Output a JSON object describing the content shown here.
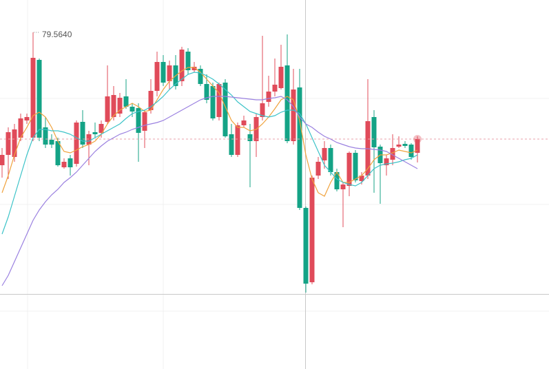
{
  "chart_data": {
    "type": "candlestick",
    "max_label": "79.5640",
    "categories": [
      null,
      null,
      null,
      null,
      null,
      null,
      null,
      null,
      null,
      null,
      null,
      null,
      null,
      null,
      null,
      null,
      null,
      null,
      null,
      null,
      null,
      null,
      null,
      null,
      null,
      null,
      null,
      null,
      null,
      null,
      null,
      null,
      null,
      null,
      null,
      null,
      null,
      null,
      null,
      null,
      null,
      null,
      null,
      null,
      null,
      null,
      null,
      null,
      null,
      null,
      null,
      null,
      null,
      null,
      null,
      null,
      null,
      null,
      null,
      null,
      null,
      null,
      null,
      null,
      null,
      null,
      null,
      null
    ],
    "open": [
      79.178,
      79.208,
      79.202,
      79.258,
      79.308,
      79.258,
      79.484,
      79.288,
      79.252,
      79.248,
      79.172,
      79.198,
      79.182,
      79.304,
      79.238,
      79.274,
      79.272,
      79.304,
      79.318,
      79.328,
      79.378,
      79.348,
      79.344,
      79.278,
      79.338,
      79.394,
      79.478,
      79.422,
      79.468,
      79.422,
      79.508,
      79.454,
      79.458,
      79.414,
      79.408,
      79.318,
      79.418,
      79.268,
      79.208,
      79.294,
      79.268,
      79.248,
      79.318,
      79.362,
      79.392,
      79.402,
      79.468,
      79.248,
      79.404,
      79.054,
      78.838,
      79.148,
      79.192,
      79.228,
      79.158,
      79.108,
      79.118,
      79.214,
      79.132,
      79.148,
      79.318,
      79.232,
      79.178,
      79.194,
      79.232,
      79.24,
      79.238,
      79.214
    ],
    "high": [
      79.228,
      79.288,
      79.298,
      79.328,
      79.328,
      79.564,
      79.488,
      79.318,
      79.268,
      79.258,
      79.198,
      79.208,
      79.308,
      79.338,
      79.278,
      79.302,
      79.308,
      79.468,
      79.408,
      79.388,
      79.428,
      79.358,
      79.358,
      79.338,
      79.428,
      79.508,
      79.498,
      79.482,
      79.498,
      79.522,
      79.518,
      79.478,
      79.468,
      79.442,
      79.418,
      79.418,
      79.428,
      79.298,
      79.302,
      79.322,
      79.298,
      79.328,
      79.554,
      79.438,
      79.488,
      79.528,
      79.558,
      79.458,
      79.458,
      79.058,
      79.148,
      79.202,
      79.248,
      79.238,
      79.168,
      79.128,
      79.218,
      79.222,
      79.158,
      79.428,
      79.338,
      79.238,
      79.208,
      79.268,
      79.262,
      79.248,
      79.242,
      79.262
    ],
    "low": [
      79.142,
      79.138,
      79.188,
      79.248,
      79.298,
      79.248,
      79.248,
      79.228,
      79.228,
      79.174,
      79.168,
      79.148,
      79.174,
      79.228,
      79.178,
      79.258,
      79.258,
      79.298,
      79.308,
      79.318,
      79.342,
      79.318,
      79.188,
      79.228,
      79.328,
      79.378,
      79.408,
      79.398,
      79.398,
      79.408,
      79.442,
      79.448,
      79.408,
      79.358,
      79.308,
      79.308,
      79.258,
      79.202,
      79.202,
      79.288,
      79.114,
      79.202,
      79.308,
      79.348,
      79.378,
      79.398,
      79.242,
      79.238,
      79.048,
      78.808,
      78.832,
      79.138,
      79.168,
      79.148,
      79.102,
      78.998,
      79.088,
      79.128,
      79.122,
      79.138,
      79.098,
      79.066,
      79.148,
      79.178,
      79.228,
      79.228,
      79.194,
      79.186
    ],
    "close": [
      79.208,
      79.274,
      79.282,
      79.314,
      79.318,
      79.49,
      79.258,
      79.238,
      79.238,
      79.178,
      79.188,
      79.172,
      79.302,
      79.238,
      79.268,
      79.268,
      79.298,
      79.378,
      79.382,
      79.374,
      79.348,
      79.334,
      79.272,
      79.332,
      79.394,
      79.478,
      79.418,
      79.468,
      79.408,
      79.514,
      79.454,
      79.464,
      79.414,
      79.368,
      79.314,
      79.414,
      79.262,
      79.208,
      79.294,
      79.308,
      79.248,
      79.318,
      79.358,
      79.392,
      79.412,
      79.464,
      79.248,
      79.398,
      79.054,
      78.834,
      79.142,
      79.188,
      79.228,
      79.158,
      79.108,
      79.122,
      79.214,
      79.134,
      79.148,
      79.306,
      79.23,
      79.184,
      79.198,
      79.228,
      79.238,
      79.234,
      79.202,
      79.254
    ],
    "up_color": "#e04b5a",
    "down_color": "#14a386",
    "series": [
      {
        "color": "#f0a23c",
        "values": [
          79.098,
          79.148,
          79.208,
          79.258,
          79.288,
          79.322,
          79.332,
          79.318,
          79.288,
          79.248,
          79.218,
          79.214,
          79.222,
          79.232,
          79.238,
          79.248,
          79.268,
          79.298,
          79.322,
          79.338,
          79.348,
          79.358,
          79.348,
          79.334,
          79.338,
          79.368,
          79.398,
          79.422,
          79.438,
          79.452,
          79.462,
          79.462,
          79.448,
          79.428,
          79.408,
          79.388,
          79.348,
          79.308,
          79.288,
          79.288,
          79.278,
          79.282,
          79.298,
          79.318,
          79.342,
          79.368,
          79.378,
          79.368,
          79.308,
          79.208,
          79.138,
          79.098,
          79.088,
          79.128,
          79.158,
          79.128,
          79.128,
          79.138,
          79.148,
          79.168,
          79.194,
          79.208,
          79.208,
          79.214,
          79.222,
          79.218,
          79.214,
          79.222
        ]
      },
      {
        "color": "#3cc3c8",
        "values": [
          78.978,
          79.028,
          79.088,
          79.148,
          79.208,
          79.258,
          79.282,
          79.282,
          79.278,
          79.278,
          79.274,
          79.268,
          79.258,
          79.248,
          79.248,
          79.258,
          79.268,
          79.278,
          79.288,
          79.298,
          79.314,
          79.328,
          79.334,
          79.338,
          79.348,
          79.362,
          79.378,
          79.398,
          79.414,
          79.428,
          79.442,
          79.448,
          79.446,
          79.438,
          79.428,
          79.414,
          79.398,
          79.382,
          79.362,
          79.348,
          79.334,
          79.328,
          79.322,
          79.318,
          79.322,
          79.332,
          79.338,
          79.338,
          79.328,
          79.298,
          79.258,
          79.218,
          79.178,
          79.158,
          79.138,
          79.128,
          79.122,
          79.118,
          79.128,
          79.148,
          79.168,
          79.178,
          79.182,
          79.184,
          79.188,
          79.194,
          79.198,
          79.208
        ]
      },
      {
        "color": "#9a80e0",
        "values": [
          78.828,
          78.858,
          78.898,
          78.938,
          78.978,
          79.018,
          79.048,
          79.072,
          79.092,
          79.108,
          79.128,
          79.142,
          79.158,
          79.178,
          79.198,
          79.218,
          79.234,
          79.248,
          79.258,
          79.268,
          79.274,
          79.282,
          79.288,
          79.294,
          79.298,
          79.302,
          79.308,
          79.318,
          79.328,
          79.338,
          79.348,
          79.358,
          79.368,
          79.374,
          79.378,
          79.378,
          79.378,
          79.376,
          79.374,
          79.372,
          79.37,
          79.368,
          79.368,
          79.372,
          79.374,
          79.378,
          79.368,
          79.348,
          79.318,
          79.298,
          79.288,
          79.274,
          79.262,
          79.254,
          79.244,
          79.238,
          79.232,
          79.228,
          79.226,
          79.226,
          79.224,
          79.222,
          79.218,
          79.208,
          79.198,
          79.188,
          79.178,
          79.168
        ]
      }
    ],
    "ylim": [
      78.586,
      79.658
    ]
  }
}
